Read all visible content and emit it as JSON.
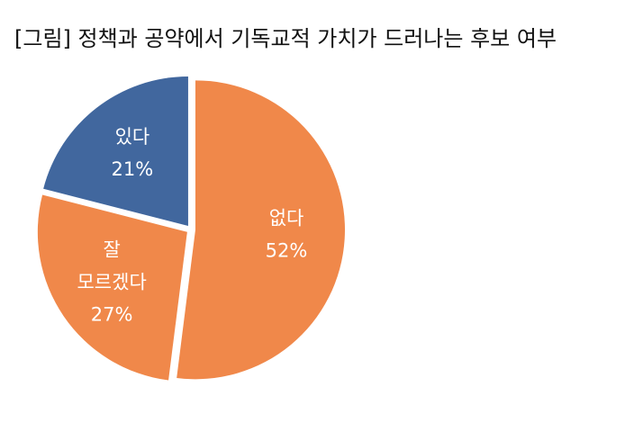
{
  "chart_data": {
    "type": "pie",
    "title": "[그림] 정책과 공약에서 기독교적 가치가 드러나는 후보 여부",
    "categories": [
      "없다",
      "잘 모르겠다",
      "있다"
    ],
    "values": [
      52,
      27,
      21
    ],
    "value_labels": [
      "52%",
      "27%",
      "21%"
    ],
    "colors": [
      "#f0884a",
      "#f0884a",
      "#41679e"
    ]
  }
}
